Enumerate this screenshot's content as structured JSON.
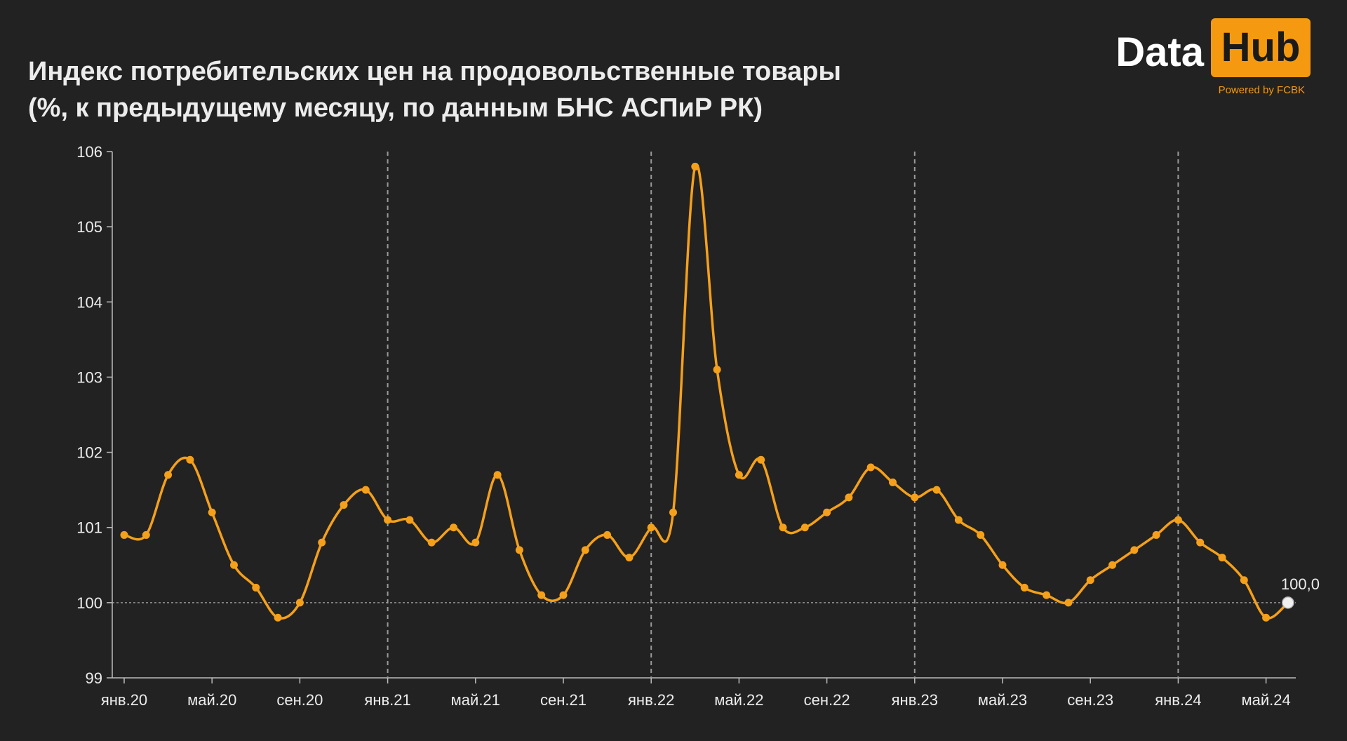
{
  "header": {
    "title_line1": "Индекс потребительских цен на продовольственные товары",
    "title_line2": "(%, к предыдущему месяцу, по данным БНС АСПиР РК)"
  },
  "logo": {
    "word": "Data",
    "box_word": "Hub",
    "tagline": "Powered by FCBK",
    "accent": "#f59a10"
  },
  "colors": {
    "background": "#222222",
    "line": "#f5a01a",
    "text": "#ececec",
    "grid": "#9a9a9a",
    "last_point": "#f0f0f0"
  },
  "chart_data": {
    "type": "line",
    "title": "Индекс потребительских цен на продовольственные товары (%, к предыдущему месяцу, по данным БНС АСПиР РК)",
    "ylim": [
      99,
      106
    ],
    "yticks": [
      "106",
      "105",
      "104",
      "103",
      "102",
      "101",
      "100",
      "99"
    ],
    "xtick_labels": [
      "янв.20",
      "май.20",
      "сен.20",
      "янв.21",
      "май.21",
      "сен.21",
      "янв.22",
      "май.22",
      "сен.22",
      "янв.23",
      "май.23",
      "сен.23",
      "янв.24",
      "май.24"
    ],
    "year_dividers": [
      "янв.21",
      "янв.22",
      "янв.23",
      "янв.24"
    ],
    "reference_line": 100,
    "grid": "vertical dashed lines at each January",
    "x": [
      "янв.20",
      "фев.20",
      "мар.20",
      "апр.20",
      "май.20",
      "июн.20",
      "июл.20",
      "авг.20",
      "сен.20",
      "окт.20",
      "ноя.20",
      "дек.20",
      "янв.21",
      "фев.21",
      "мар.21",
      "апр.21",
      "май.21",
      "июн.21",
      "июл.21",
      "авг.21",
      "сен.21",
      "окт.21",
      "ноя.21",
      "дек.21",
      "янв.22",
      "фев.22",
      "мар.22",
      "апр.22",
      "май.22",
      "июн.22",
      "июл.22",
      "авг.22",
      "сен.22",
      "окт.22",
      "ноя.22",
      "дек.22",
      "янв.23",
      "фев.23",
      "мар.23",
      "апр.23",
      "май.23",
      "июн.23",
      "июл.23",
      "авг.23",
      "сен.23",
      "окт.23",
      "ноя.23",
      "дек.23",
      "янв.24",
      "фев.24",
      "мар.24",
      "апр.24",
      "май.24",
      "июн.24"
    ],
    "series": [
      {
        "values": [
          100.9,
          100.9,
          101.7,
          101.9,
          101.2,
          100.5,
          100.2,
          99.8,
          100.0,
          100.8,
          101.3,
          101.5,
          101.1,
          101.1,
          100.8,
          101.0,
          100.8,
          101.7,
          100.7,
          100.1,
          100.1,
          100.7,
          100.9,
          100.6,
          101.0,
          101.2,
          105.8,
          103.1,
          101.7,
          101.9,
          101.0,
          101.0,
          101.2,
          101.4,
          101.8,
          101.6,
          101.4,
          101.5,
          101.1,
          100.9,
          100.5,
          100.2,
          100.1,
          100.0,
          100.3,
          100.5,
          100.7,
          100.9,
          101.1,
          100.8,
          100.6,
          100.3,
          99.8,
          100.0
        ]
      }
    ],
    "last_label": "100,0"
  }
}
